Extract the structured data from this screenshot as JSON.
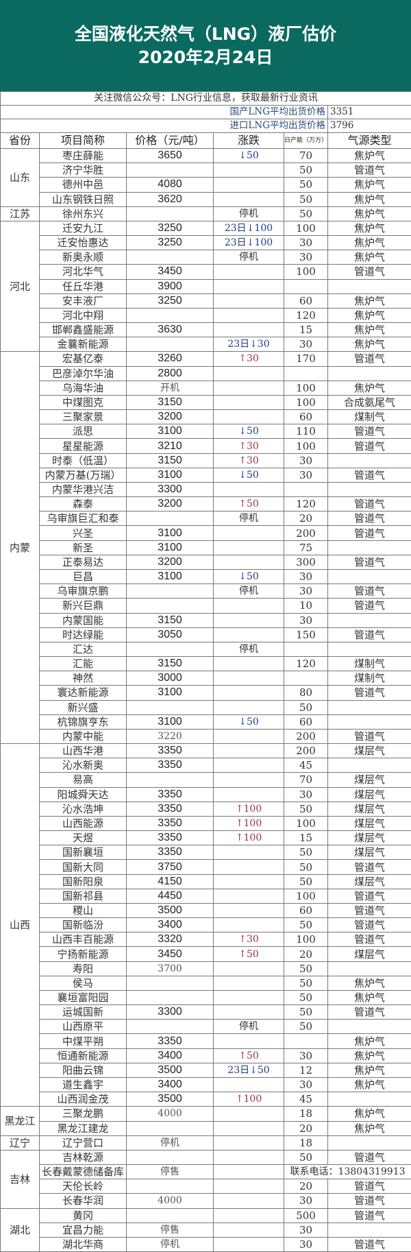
{
  "header": {
    "title": "全国液化天然气（LNG）液厂估价",
    "date": "2020年2月24日",
    "bg_color": "#0a6a60"
  },
  "notice": "关注微信公众号：LNG行业信息，获取最新行业资讯",
  "averages": {
    "domestic_label": "国产LNG平均出货价格",
    "domestic_value": "3351",
    "import_label": "进口LNG平均出货价格",
    "import_value": "3796"
  },
  "columns": [
    "省份",
    "项目简称",
    "价格（元/吨）",
    "涨跌",
    "日产能（万方）",
    "气源类型"
  ],
  "colors": {
    "down": "#1d3b8c",
    "up": "#9e3040"
  },
  "groups": [
    {
      "province": "山东",
      "rows": [
        {
          "name": "枣庄薛能",
          "price": "3650",
          "change": {
            "dir": "down",
            "amount": "50"
          },
          "capacity": "70",
          "gas": "焦炉气"
        },
        {
          "name": "济宁华胜",
          "price": "",
          "capacity": "50",
          "gas": "管道气"
        },
        {
          "name": "德州中邑",
          "price": "4080",
          "capacity": "50",
          "gas": "焦炉气"
        },
        {
          "name": "山东钢铁日照",
          "price": "3620",
          "capacity": "50",
          "gas": "焦炉气"
        }
      ]
    },
    {
      "province": "江苏",
      "rows": [
        {
          "name": "徐州东兴",
          "price": "",
          "change": {
            "text": "停机"
          },
          "capacity": "50",
          "gas": "焦炉气"
        }
      ]
    },
    {
      "province": "河北",
      "rows": [
        {
          "name": "迁安九江",
          "price": "3250",
          "change": {
            "date": "23日",
            "dir": "down",
            "amount": "100"
          },
          "capacity": "100",
          "gas": "焦炉气"
        },
        {
          "name": "迁安怡惠达",
          "price": "3250",
          "change": {
            "date": "23日",
            "dir": "down",
            "amount": "100"
          },
          "capacity": "30",
          "gas": "焦炉气"
        },
        {
          "name": "新奥永顺",
          "price": "",
          "change": {
            "text": "停机"
          },
          "capacity": "30",
          "gas": "焦炉气"
        },
        {
          "name": "河北华气",
          "price": "3450",
          "capacity": "100",
          "gas": "管道气"
        },
        {
          "name": "任丘华港",
          "price": "3900",
          "capacity": "",
          "gas": ""
        },
        {
          "name": "安丰液厂",
          "price": "3250",
          "capacity": "60",
          "gas": "焦炉气"
        },
        {
          "name": "河北中翔",
          "price": "",
          "capacity": "120",
          "gas": "焦炉气"
        },
        {
          "name": "邯郸鑫盛能源",
          "price": "3630",
          "capacity": "15",
          "gas": "焦炉气"
        },
        {
          "name": "金蘘新能源",
          "price": "",
          "change": {
            "date": "23日",
            "dir": "down",
            "amount": "30"
          },
          "capacity": "30",
          "gas": "焦炉气"
        }
      ]
    },
    {
      "province": "内蒙",
      "rows": [
        {
          "name": "宏基亿泰",
          "price": "3260",
          "change": {
            "dir": "up",
            "amount": "30"
          },
          "capacity": "170",
          "gas": "管道气"
        },
        {
          "name": "巴彦淖尔华油",
          "price": "2800",
          "capacity": "",
          "gas": ""
        },
        {
          "name": "乌海华油",
          "price": "开机",
          "price_plain": true,
          "capacity": "100",
          "gas": "焦炉气"
        },
        {
          "name": "中煤图克",
          "price": "3150",
          "capacity": "100",
          "gas": "合成氨尾气"
        },
        {
          "name": "三聚家景",
          "price": "3200",
          "capacity": "60",
          "gas": "煤制气"
        },
        {
          "name": "派思",
          "price": "3100",
          "change": {
            "dir": "down",
            "amount": "50"
          },
          "capacity": "110",
          "gas": "管道气"
        },
        {
          "name": "星星能源",
          "price": "3210",
          "change": {
            "dir": "up",
            "amount": "30"
          },
          "capacity": "100",
          "gas": "管道气"
        },
        {
          "name": "时泰（低温）",
          "price": "3150",
          "change": {
            "dir": "up",
            "amount": "30"
          },
          "capacity": "30",
          "gas": ""
        },
        {
          "name": "内蒙万基(万瑞）",
          "price": "3100",
          "change": {
            "dir": "down",
            "amount": "50"
          },
          "capacity": "30",
          "gas": "管道气"
        },
        {
          "name": "内蒙华港兴洁",
          "price": "3300",
          "capacity": "",
          "gas": ""
        },
        {
          "name": "森泰",
          "price": "3200",
          "change": {
            "dir": "up",
            "amount": "50"
          },
          "capacity": "120",
          "gas": "管道气"
        },
        {
          "name": "乌审旗巨汇和泰",
          "price": "",
          "change": {
            "text": "停机"
          },
          "capacity": "20",
          "gas": "管道气"
        },
        {
          "name": "兴圣",
          "price": "3100",
          "capacity": "200",
          "gas": "管道气"
        },
        {
          "name": "新圣",
          "price": "3100",
          "capacity": "75",
          "gas": ""
        },
        {
          "name": "正泰易达",
          "price": "3200",
          "capacity": "300",
          "gas": "管道气"
        },
        {
          "name": "巨昌",
          "price": "3100",
          "change": {
            "dir": "down",
            "amount": "50"
          },
          "capacity": "30",
          "gas": ""
        },
        {
          "name": "乌审旗京鹏",
          "price": "",
          "change": {
            "text": "停机"
          },
          "capacity": "30",
          "gas": "管道气"
        },
        {
          "name": "新兴巨鼎",
          "price": "",
          "capacity": "10",
          "gas": "管道气"
        },
        {
          "name": "内蒙国能",
          "price": "3150",
          "capacity": "30",
          "gas": ""
        },
        {
          "name": "时达绿能",
          "price": "3050",
          "capacity": "150",
          "gas": "管道气"
        },
        {
          "name": "汇达",
          "price": "",
          "change": {
            "text": "停机"
          },
          "capacity": "",
          "gas": ""
        },
        {
          "name": "汇能",
          "price": "3150",
          "capacity": "120",
          "gas": "煤制气"
        },
        {
          "name": "神然",
          "price": "3000",
          "capacity": "",
          "gas": "煤制气"
        },
        {
          "name": "寰达新能源",
          "price": "3100",
          "capacity": "80",
          "gas": "管道气"
        },
        {
          "name": "新兴盛",
          "price": "",
          "capacity": "50",
          "gas": ""
        },
        {
          "name": "杭锦旗亨东",
          "price": "3100",
          "change": {
            "dir": "down",
            "amount": "50"
          },
          "capacity": "60",
          "gas": ""
        },
        {
          "name": "内蒙中能",
          "price": "3220",
          "price_plain": true,
          "capacity": "200",
          "gas": "管道气"
        }
      ]
    },
    {
      "province": "山西",
      "rows": [
        {
          "name": "山西华港",
          "price": "3350",
          "capacity": "200",
          "gas": "煤层气"
        },
        {
          "name": "沁水新奥",
          "price": "3350",
          "capacity": "45",
          "gas": ""
        },
        {
          "name": "易高",
          "price": "",
          "capacity": "70",
          "gas": "煤层气"
        },
        {
          "name": "阳城舜天达",
          "price": "3350",
          "capacity": "30",
          "gas": "煤层气"
        },
        {
          "name": "沁水浩坤",
          "price": "3350",
          "change": {
            "dir": "up",
            "amount": "100"
          },
          "capacity": "50",
          "gas": "煤层气"
        },
        {
          "name": "山西能源",
          "price": "3350",
          "change": {
            "dir": "up",
            "amount": "100"
          },
          "capacity": "100",
          "gas": "煤层气"
        },
        {
          "name": "天煜",
          "price": "3350",
          "change": {
            "dir": "up",
            "amount": "100"
          },
          "capacity": "15",
          "gas": "煤层气"
        },
        {
          "name": "国新襄垣",
          "price": "3350",
          "capacity": "50",
          "gas": "煤层气"
        },
        {
          "name": "国新大同",
          "price": "3750",
          "capacity": "50",
          "gas": "管道气"
        },
        {
          "name": "国新阳泉",
          "price": "4150",
          "capacity": "50",
          "gas": "煤层气"
        },
        {
          "name": "国新祁县",
          "price": "4450",
          "capacity": "100",
          "gas": "管道气"
        },
        {
          "name": "稷山",
          "price": "3500",
          "capacity": "60",
          "gas": "管道气"
        },
        {
          "name": "国新临汾",
          "price": "3400",
          "capacity": "50",
          "gas": "管道气"
        },
        {
          "name": "山西丰百能源",
          "price": "3320",
          "change": {
            "dir": "up",
            "amount": "30"
          },
          "capacity": "100",
          "gas": "管道气"
        },
        {
          "name": "宁扬新能源",
          "price": "3450",
          "change": {
            "dir": "up",
            "amount": "50"
          },
          "capacity": "20",
          "gas": "煤层气"
        },
        {
          "name": "寿阳",
          "price": "3700",
          "price_plain": true,
          "capacity": "50",
          "gas": ""
        },
        {
          "name": "侯马",
          "price": "",
          "capacity": "50",
          "gas": "焦炉气"
        },
        {
          "name": "襄垣富阳园",
          "price": "",
          "capacity": "50",
          "gas": "焦炉气"
        },
        {
          "name": "运城国新",
          "price": "3300",
          "capacity": "50",
          "gas": "管道气"
        },
        {
          "name": "山西原平",
          "price": "",
          "change": {
            "text": "停机"
          },
          "capacity": "50",
          "gas": ""
        },
        {
          "name": "中煤平朔",
          "price": "3350",
          "capacity": "",
          "gas": "焦炉气"
        },
        {
          "name": "恒通新能源",
          "price": "3400",
          "change": {
            "dir": "up",
            "amount": "50"
          },
          "capacity": "30",
          "gas": "焦炉气"
        },
        {
          "name": "阳曲云锦",
          "price": "3500",
          "change": {
            "date": "23日",
            "dir": "down",
            "amount": "50"
          },
          "capacity": "12",
          "gas": "焦炉气"
        },
        {
          "name": "道生鑫宇",
          "price": "3400",
          "capacity": "30",
          "gas": "焦炉气"
        },
        {
          "name": "山西润金茂",
          "price": "3500",
          "change": {
            "dir": "up",
            "amount": "100"
          },
          "capacity": "45",
          "gas": ""
        }
      ]
    },
    {
      "province": "黑龙江",
      "rows": [
        {
          "name": "三聚龙鹏",
          "price": "4000",
          "price_plain": true,
          "capacity": "18",
          "gas": "焦炉气"
        },
        {
          "name": "黑龙江建龙",
          "price": "",
          "capacity": "20",
          "gas": "焦炉气"
        }
      ]
    },
    {
      "province": "辽宁",
      "rows": [
        {
          "name": "辽宁营口",
          "price": "停机",
          "price_plain": true,
          "capacity": "18",
          "gas": ""
        }
      ]
    },
    {
      "province": "吉林",
      "rows": [
        {
          "name": "吉林乾源",
          "price": "",
          "capacity": "50",
          "gas": "管道气"
        },
        {
          "name": "长春戴蒙德储备库",
          "price": "停售",
          "price_plain": true,
          "contact": "联系电话：13804319913"
        },
        {
          "name": "天伦长岭",
          "price": "",
          "capacity": "20",
          "gas": "管道气"
        },
        {
          "name": "长春华润",
          "price": "4000",
          "price_plain": true,
          "capacity": "30",
          "gas": "管道气"
        }
      ]
    },
    {
      "province": "湖北",
      "rows": [
        {
          "name": "黄冈",
          "price": "",
          "capacity": "500",
          "gas": "管道气"
        },
        {
          "name": "宜昌力能",
          "price": "停售",
          "price_plain": true,
          "capacity": "30",
          "gas": ""
        },
        {
          "name": "湖北华商",
          "price": "停机",
          "price_plain": true,
          "capacity": "30",
          "gas": "管道气"
        }
      ]
    }
  ]
}
